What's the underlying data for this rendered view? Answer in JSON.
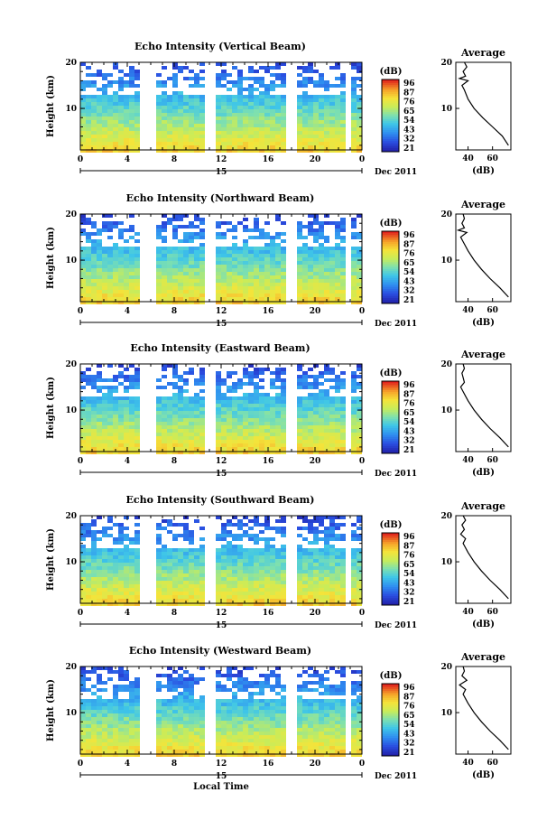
{
  "chart_data": [
    {
      "type": "heatmap",
      "title": "Echo Intensity (Vertical Beam)",
      "xlabel": "",
      "ylabel": "Height (km)",
      "xlim": [
        0,
        24
      ],
      "ylim": [
        1,
        20
      ],
      "x_ticks": [
        "0",
        "4",
        "8",
        "12",
        "16",
        "20",
        "0"
      ],
      "y_ticks": [
        "10",
        "20"
      ],
      "date_label": "15",
      "date_suffix": "Dec 2011",
      "colorbar": {
        "unit": "(dB)",
        "ticks": [
          "96",
          "87",
          "76",
          "65",
          "54",
          "43",
          "32",
          "21"
        ]
      },
      "profile": {
        "title": "Average",
        "xlabel": "(dB)",
        "x_ticks": [
          "40",
          "60"
        ],
        "y_ticks": [
          "10",
          "20"
        ],
        "xlim": [
          30,
          75
        ],
        "heights": [
          2,
          4,
          6,
          8,
          10,
          12,
          14,
          15,
          16,
          16.5,
          17,
          18,
          19,
          20
        ],
        "values": [
          73,
          68,
          60,
          52,
          45,
          40,
          37,
          35,
          40,
          33,
          38,
          36,
          39,
          37
        ]
      }
    },
    {
      "type": "heatmap",
      "title": "Echo Intensity (Northward Beam)",
      "xlabel": "",
      "ylabel": "Height (km)",
      "xlim": [
        0,
        24
      ],
      "ylim": [
        1,
        20
      ],
      "x_ticks": [
        "0",
        "4",
        "8",
        "12",
        "16",
        "20",
        "0"
      ],
      "y_ticks": [
        "10",
        "20"
      ],
      "date_label": "15",
      "date_suffix": "Dec 2011",
      "colorbar": {
        "unit": "(dB)",
        "ticks": [
          "96",
          "87",
          "76",
          "65",
          "54",
          "43",
          "32",
          "21"
        ]
      },
      "profile": {
        "title": "Average",
        "xlabel": "(dB)",
        "x_ticks": [
          "40",
          "60"
        ],
        "y_ticks": [
          "10",
          "20"
        ],
        "xlim": [
          30,
          75
        ],
        "heights": [
          2,
          4,
          6,
          8,
          10,
          12,
          14,
          15,
          16,
          16.5,
          17,
          18,
          19,
          20
        ],
        "values": [
          73,
          66,
          58,
          51,
          45,
          40,
          36,
          34,
          39,
          32,
          37,
          35,
          37,
          36
        ]
      }
    },
    {
      "type": "heatmap",
      "title": "Echo Intensity (Eastward Beam)",
      "xlabel": "",
      "ylabel": "Height (km)",
      "xlim": [
        0,
        24
      ],
      "ylim": [
        1,
        20
      ],
      "x_ticks": [
        "0",
        "4",
        "8",
        "12",
        "16",
        "20",
        "0"
      ],
      "y_ticks": [
        "10",
        "20"
      ],
      "date_label": "15",
      "date_suffix": "Dec 2011",
      "colorbar": {
        "unit": "(dB)",
        "ticks": [
          "96",
          "87",
          "76",
          "65",
          "54",
          "43",
          "32",
          "21"
        ]
      },
      "profile": {
        "title": "Average",
        "xlabel": "(dB)",
        "x_ticks": [
          "40",
          "60"
        ],
        "y_ticks": [
          "10",
          "20"
        ],
        "xlim": [
          30,
          75
        ],
        "heights": [
          2,
          4,
          6,
          8,
          10,
          12,
          13,
          14,
          15,
          16,
          18,
          19,
          20
        ],
        "values": [
          73,
          66,
          58,
          51,
          45,
          40,
          38,
          36,
          34,
          37,
          35,
          37,
          36
        ]
      }
    },
    {
      "type": "heatmap",
      "title": "Echo Intensity (Southward Beam)",
      "xlabel": "",
      "ylabel": "Height (km)",
      "xlim": [
        0,
        24
      ],
      "ylim": [
        1,
        20
      ],
      "x_ticks": [
        "0",
        "4",
        "8",
        "12",
        "16",
        "20",
        "0"
      ],
      "y_ticks": [
        "10",
        "20"
      ],
      "date_label": "15",
      "date_suffix": "Dec 2011",
      "colorbar": {
        "unit": "(dB)",
        "ticks": [
          "96",
          "87",
          "76",
          "65",
          "54",
          "43",
          "32",
          "21"
        ]
      },
      "profile": {
        "title": "Average",
        "xlabel": "(dB)",
        "x_ticks": [
          "40",
          "60"
        ],
        "y_ticks": [
          "10",
          "20"
        ],
        "xlim": [
          30,
          75
        ],
        "heights": [
          2,
          4,
          6,
          8,
          10,
          12,
          14,
          15,
          16,
          17,
          18,
          19,
          20
        ],
        "values": [
          73,
          66,
          58,
          51,
          45,
          40,
          36,
          38,
          34,
          37,
          35,
          38,
          36
        ]
      }
    },
    {
      "type": "heatmap",
      "title": "Echo Intensity (Westward Beam)",
      "xlabel": "Local Time",
      "ylabel": "Height (km)",
      "xlim": [
        0,
        24
      ],
      "ylim": [
        1,
        20
      ],
      "x_ticks": [
        "0",
        "4",
        "8",
        "12",
        "16",
        "20",
        "0"
      ],
      "y_ticks": [
        "10",
        "20"
      ],
      "date_label": "15",
      "date_suffix": "Dec 2011",
      "colorbar": {
        "unit": "(dB)",
        "ticks": [
          "96",
          "87",
          "76",
          "65",
          "54",
          "43",
          "32",
          "21"
        ]
      },
      "profile": {
        "title": "Average",
        "xlabel": "(dB)",
        "x_ticks": [
          "40",
          "60"
        ],
        "y_ticks": [
          "10",
          "20"
        ],
        "xlim": [
          30,
          75
        ],
        "heights": [
          2,
          4,
          6,
          8,
          10,
          12,
          13,
          14,
          15,
          16,
          17,
          18,
          19,
          20
        ],
        "values": [
          73,
          66,
          58,
          51,
          45,
          40,
          38,
          36,
          38,
          33,
          39,
          35,
          37,
          36
        ]
      }
    }
  ]
}
